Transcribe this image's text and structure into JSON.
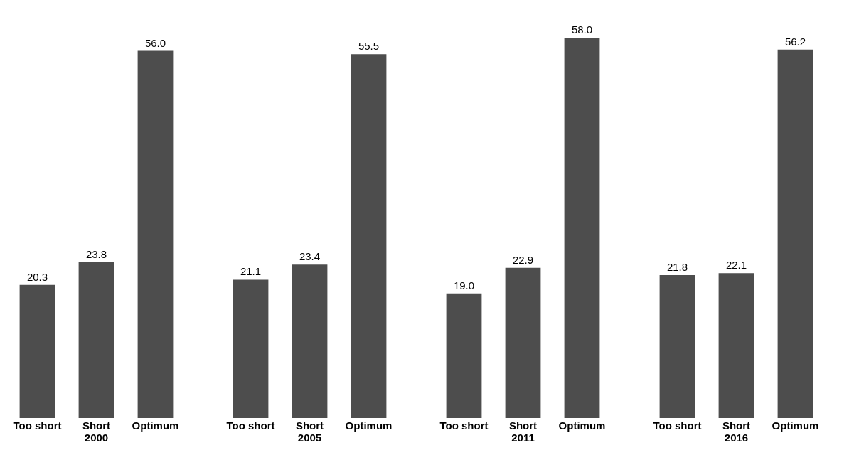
{
  "chart_data": [
    {
      "type": "bar",
      "xlabel": "2000",
      "categories": [
        "Too short",
        "Short",
        "Optimum"
      ],
      "values": [
        20.3,
        23.8,
        56.0
      ],
      "value_labels": [
        "20.3",
        "23.8",
        "56.0"
      ],
      "color": "#4d4d4d",
      "tick_labels": "x"
    },
    {
      "type": "bar",
      "xlabel": "2005",
      "categories": [
        "Too short",
        "Short",
        "Optimum"
      ],
      "values": [
        21.1,
        23.4,
        55.5
      ],
      "value_labels": [
        "21.1",
        "23.4",
        "55.5"
      ],
      "color": "#4d4d4d",
      "tick_labels": "x"
    },
    {
      "type": "bar",
      "xlabel": "2011",
      "categories": [
        "Too short",
        "Short",
        "Optimum"
      ],
      "values": [
        19.0,
        22.9,
        58.0
      ],
      "value_labels": [
        "19.0",
        "22.9",
        "58.0"
      ],
      "color": "#4d4d4d",
      "tick_labels": "x"
    },
    {
      "type": "bar",
      "xlabel": "2016",
      "categories": [
        "Too short",
        "Short",
        "Optimum"
      ],
      "values": [
        21.8,
        22.1,
        56.2
      ],
      "value_labels": [
        "21.8",
        "22.1",
        "56.2"
      ],
      "color": "#4d4d4d",
      "tick_labels": "x"
    }
  ]
}
